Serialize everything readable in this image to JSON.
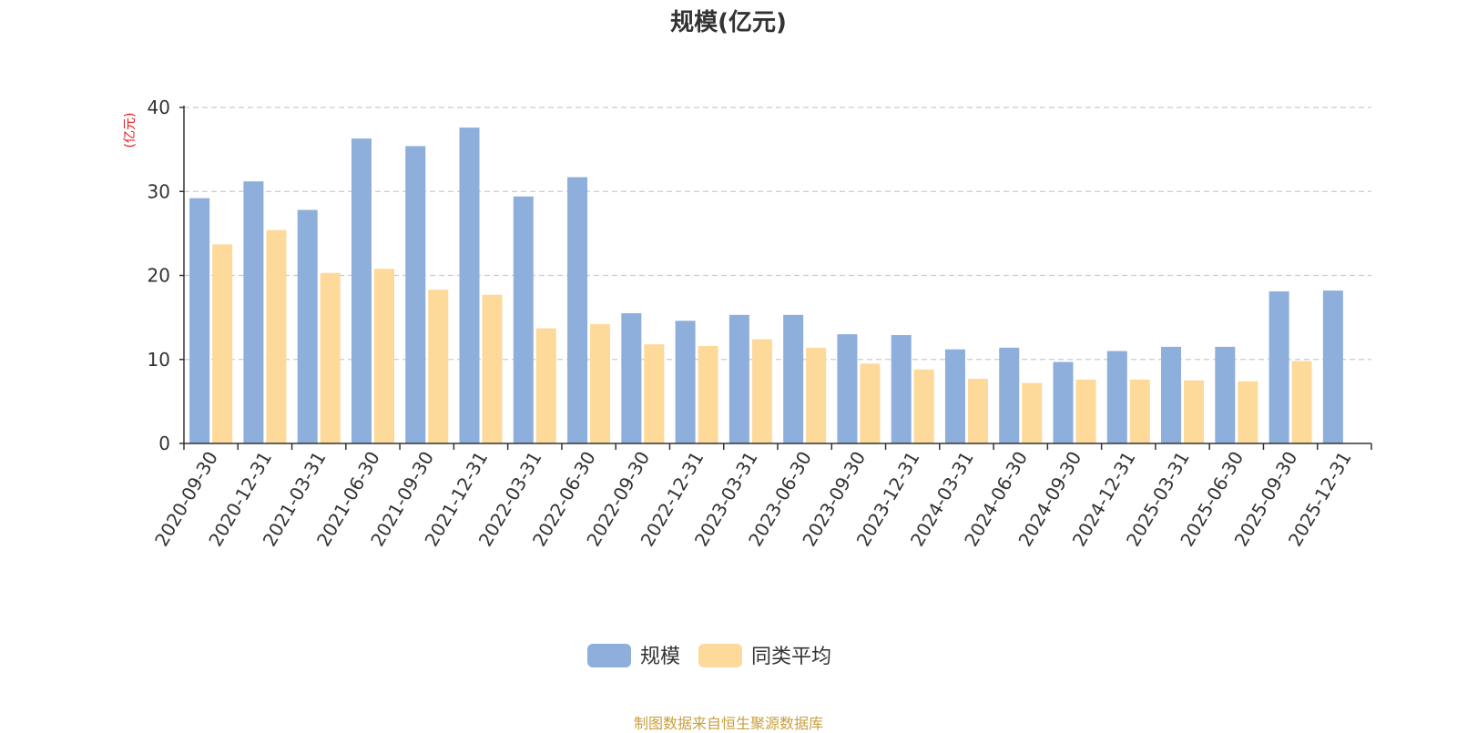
{
  "chart_data": {
    "type": "bar",
    "title": "规模(亿元)",
    "ylabel": "(亿元)",
    "xlabel": "",
    "ylim": [
      0,
      40
    ],
    "yticks": [
      0,
      10,
      20,
      30,
      40
    ],
    "grid": "horizontal-dashed",
    "legend_position": "bottom-center",
    "categories": [
      "2020-09-30",
      "2020-12-31",
      "2021-03-31",
      "2021-06-30",
      "2021-09-30",
      "2021-12-31",
      "2022-03-31",
      "2022-06-30",
      "2022-09-30",
      "2022-12-31",
      "2023-03-31",
      "2023-06-30",
      "2023-09-30",
      "2023-12-31",
      "2024-03-31",
      "2024-06-30",
      "2024-09-30",
      "2024-12-31",
      "2025-03-31",
      "2025-06-30",
      "2025-09-30",
      "2025-12-31"
    ],
    "series": [
      {
        "name": "规模",
        "color": "#8eaedb",
        "values": [
          29.2,
          31.2,
          27.8,
          36.3,
          35.4,
          37.6,
          29.4,
          31.7,
          15.5,
          14.6,
          15.3,
          15.3,
          13.0,
          12.9,
          11.2,
          11.4,
          9.7,
          11.0,
          11.5,
          11.5,
          18.1,
          18.2
        ]
      },
      {
        "name": "同类平均",
        "color": "#fdd99a",
        "values": [
          23.7,
          25.4,
          20.3,
          20.8,
          18.3,
          17.7,
          13.7,
          14.2,
          11.8,
          11.6,
          12.4,
          11.4,
          9.5,
          8.8,
          7.7,
          7.2,
          7.6,
          7.6,
          7.5,
          7.4,
          9.8,
          null
        ]
      }
    ]
  },
  "source_note": "制图数据来自恒生聚源数据库"
}
